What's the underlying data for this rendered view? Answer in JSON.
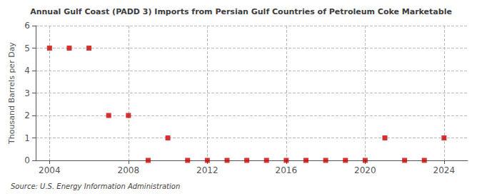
{
  "chart_data": {
    "type": "scatter",
    "title": "Annual Gulf Coast (PADD 3) Imports from Persian Gulf Countries of Petroleum Coke Marketable",
    "ylabel": "Thousand Barrels per Day",
    "source": "Source: U.S. Energy Information Administration",
    "x": [
      2004,
      2005,
      2006,
      2007,
      2008,
      2009,
      2010,
      2011,
      2012,
      2013,
      2014,
      2015,
      2016,
      2017,
      2018,
      2019,
      2020,
      2021,
      2022,
      2023,
      2024
    ],
    "values": [
      5,
      5,
      5,
      2,
      2,
      0,
      1,
      0,
      0,
      0,
      0,
      0,
      0,
      0,
      0,
      0,
      0,
      1,
      0,
      0,
      1
    ],
    "color": "#cc0000",
    "marker": "square",
    "xlim": [
      2003.3,
      2025.2
    ],
    "xticks": [
      2004,
      2008,
      2012,
      2016,
      2020,
      2024
    ],
    "ylim": [
      0,
      6
    ],
    "yticks": [
      0,
      1,
      2,
      3,
      4,
      5,
      6
    ],
    "grid": true
  }
}
